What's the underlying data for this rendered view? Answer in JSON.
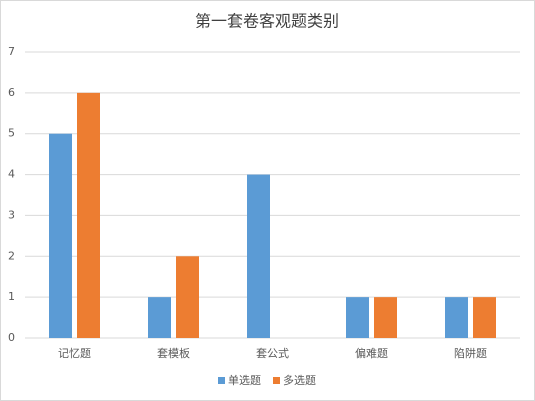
{
  "chart_data": {
    "type": "bar",
    "title": "第一套卷客观题类别",
    "categories": [
      "记忆题",
      "套模板",
      "套公式",
      "偏难题",
      "陷阱题"
    ],
    "series": [
      {
        "name": "单选题",
        "color": "#5b9bd5",
        "values": [
          5,
          1,
          4,
          1,
          1
        ]
      },
      {
        "name": "多选题",
        "color": "#ed7d31",
        "values": [
          6,
          2,
          0,
          1,
          1
        ]
      }
    ],
    "ylim": [
      0,
      7
    ],
    "yticks": [
      0,
      1,
      2,
      3,
      4,
      5,
      6,
      7
    ],
    "grid": true,
    "legend": "bottom"
  }
}
